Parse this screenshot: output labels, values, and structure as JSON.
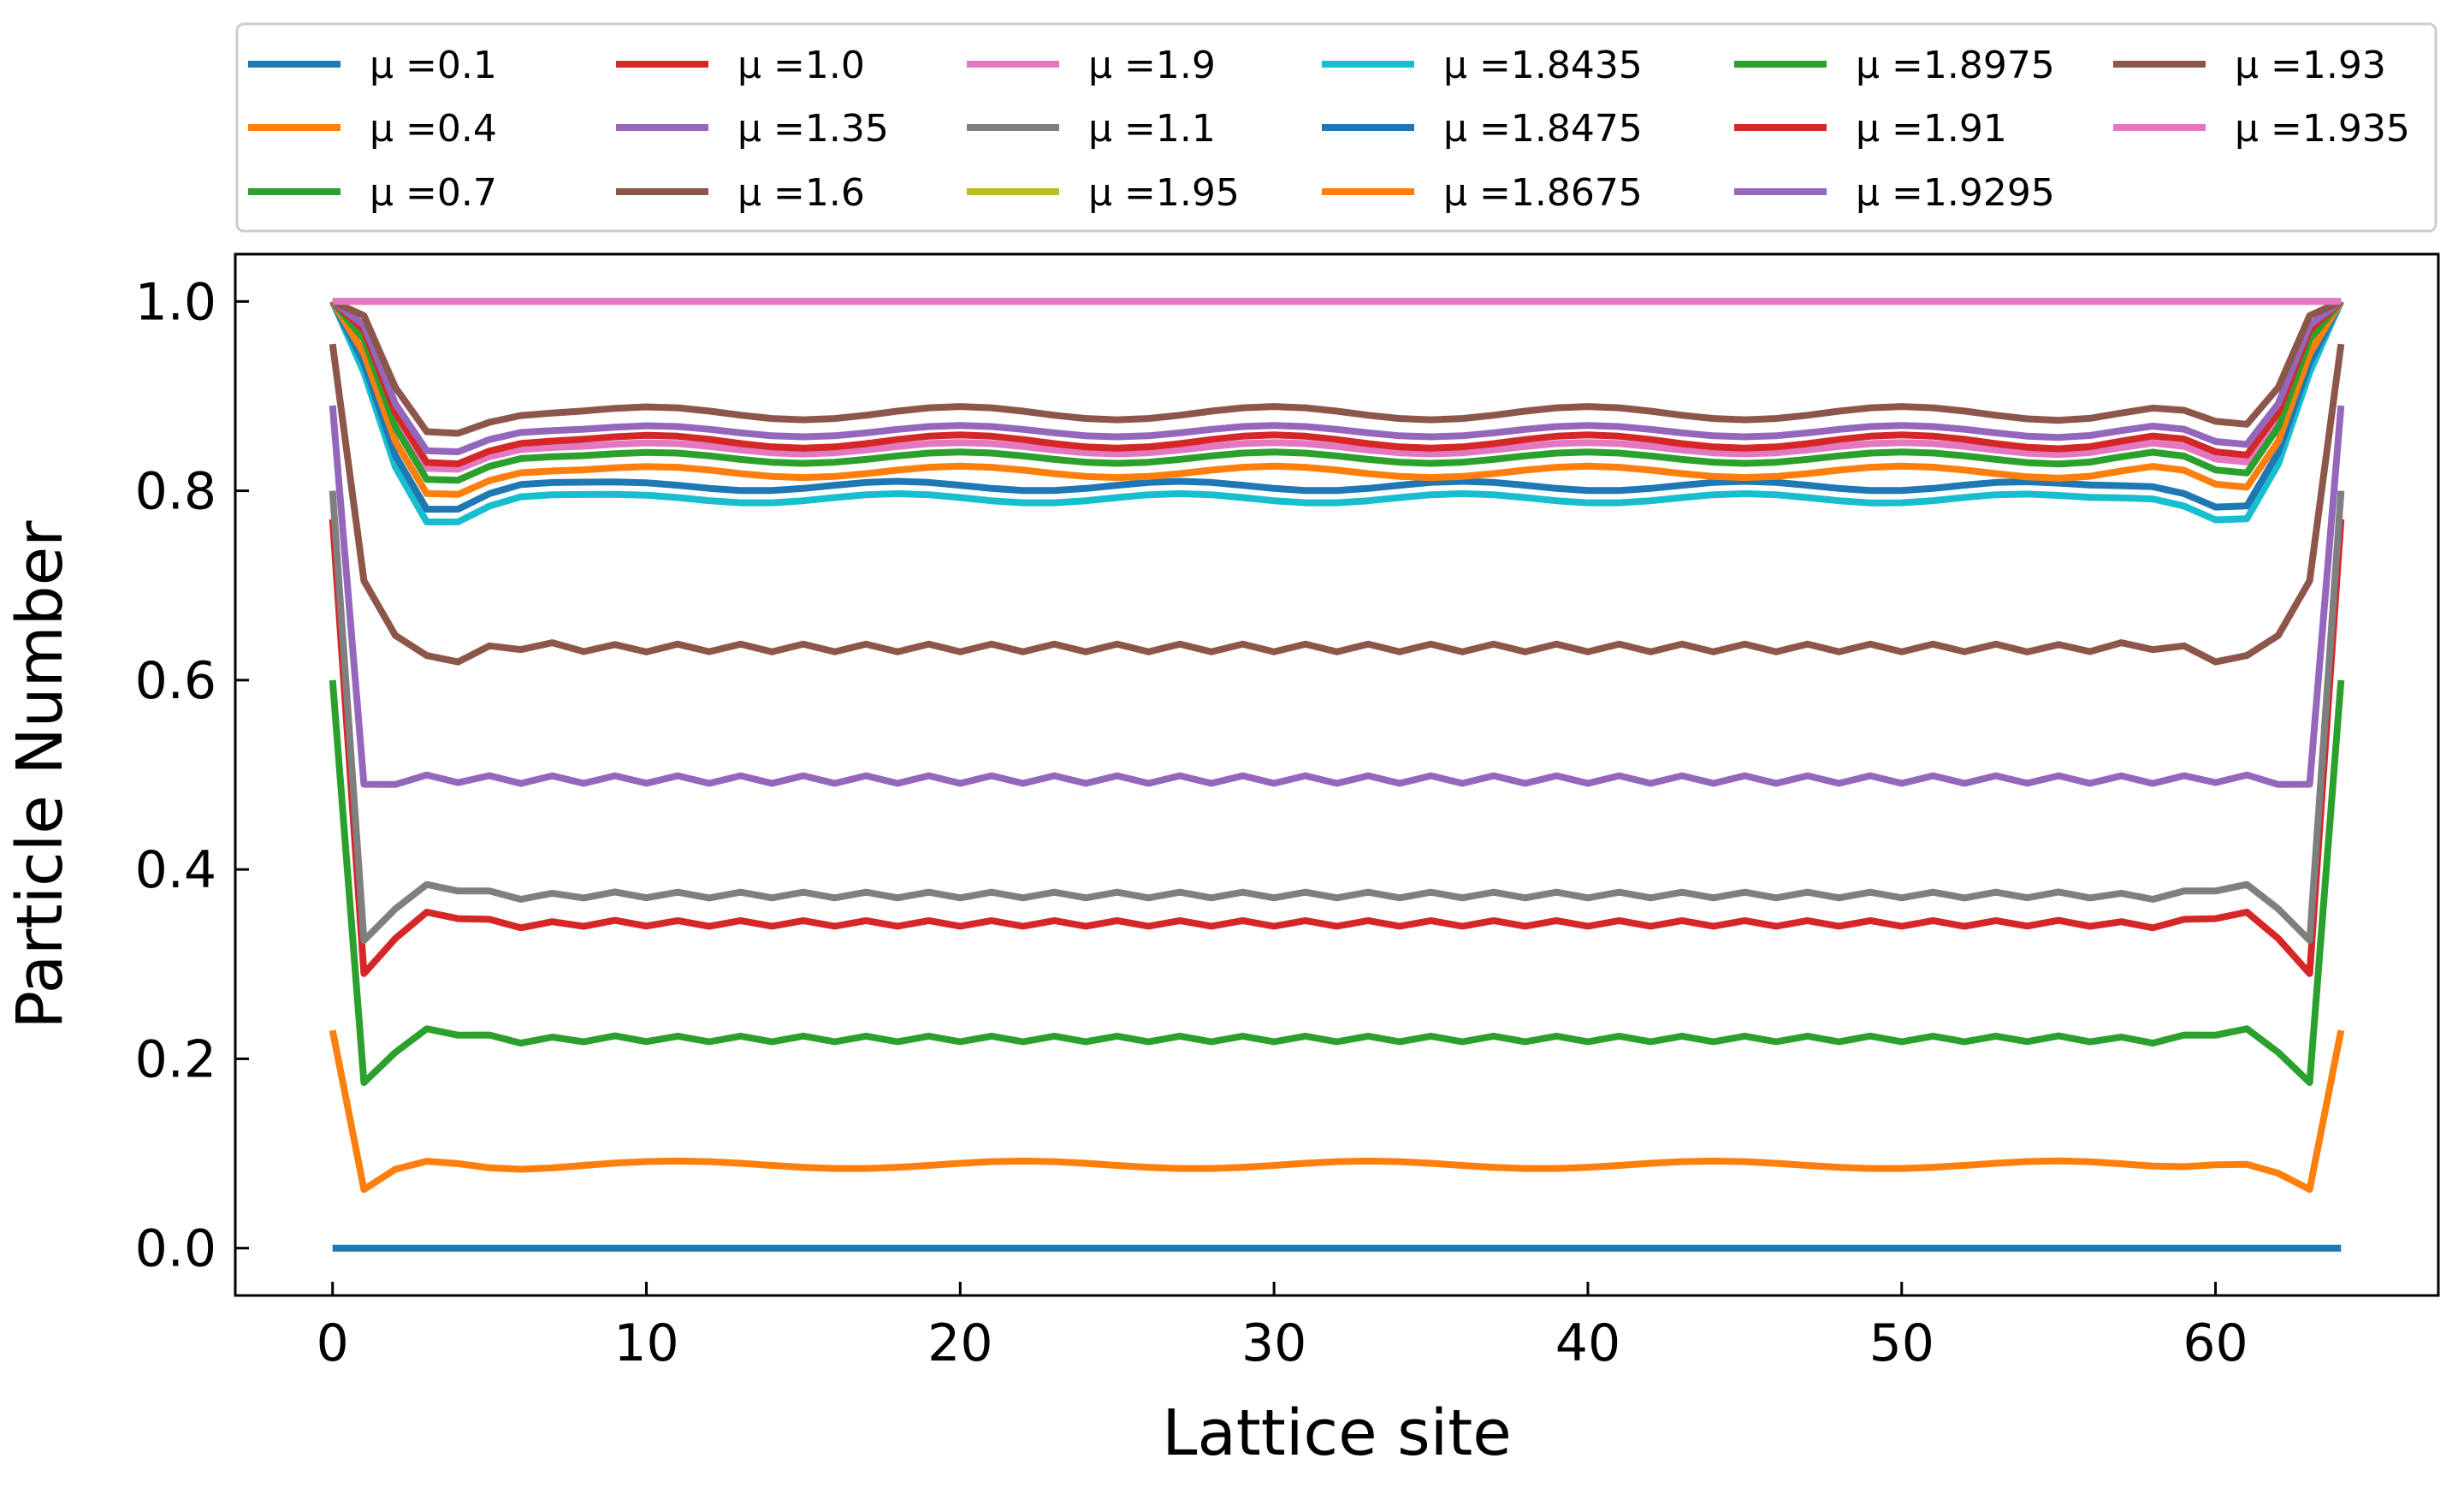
{
  "chart_data": {
    "type": "line",
    "title": "",
    "xlabel": "Lattice site",
    "ylabel": "Particle Number",
    "xlim": [
      -3.1,
      67.1
    ],
    "ylim": [
      -0.05,
      1.05
    ],
    "xticks": [
      0,
      10,
      20,
      30,
      40,
      50,
      60
    ],
    "yticks": [
      0.0,
      0.2,
      0.4,
      0.6,
      0.8,
      1.0
    ],
    "xtick_labels": [
      "0",
      "10",
      "20",
      "30",
      "40",
      "50",
      "60"
    ],
    "ytick_labels": [
      "0.0",
      "0.2",
      "0.4",
      "0.6",
      "0.8",
      "1.0"
    ],
    "grid": false,
    "legend_position": "top, above plot",
    "legend_columns": 6,
    "x_range": [
      0,
      64
    ],
    "series": [
      {
        "name": "μ =0.1",
        "color": "#1f77b4",
        "kind": "flat",
        "bulk": 0.0
      },
      {
        "name": "μ =0.4",
        "color": "#ff7f0e",
        "kind": "profile",
        "edge": 0.23,
        "dip": 0.062,
        "bulk": 0.088,
        "osc_amp": 0.004,
        "osc_period": 11,
        "zig_amp": 0.0
      },
      {
        "name": "μ =0.7",
        "color": "#2ca02c",
        "kind": "profile",
        "edge": 0.6,
        "dip": 0.175,
        "bulk": 0.221,
        "osc_amp": 0.0,
        "osc_period": 10,
        "zig_amp": 0.003
      },
      {
        "name": "μ =1.0",
        "color": "#d62728",
        "kind": "profile",
        "edge": 0.77,
        "dip": 0.29,
        "bulk": 0.343,
        "osc_amp": 0.0,
        "osc_period": 10,
        "zig_amp": 0.003
      },
      {
        "name": "μ =1.35",
        "color": "#9467bd",
        "kind": "profile",
        "edge": 0.89,
        "dip": 0.49,
        "bulk": 0.495,
        "osc_amp": 0.0,
        "osc_period": 10,
        "zig_amp": 0.004
      },
      {
        "name": "μ =1.6",
        "color": "#8c564b",
        "kind": "profile",
        "edge": 0.955,
        "dip": 0.705,
        "bulk": 0.634,
        "osc_amp": 0.0,
        "osc_period": 10,
        "zig_amp": 0.004
      },
      {
        "name": "μ =1.9",
        "color": "#e377c2",
        "kind": "profile",
        "edge": 1.0,
        "dip": 0.96,
        "bulk": 0.845,
        "osc_amp": 0.006,
        "osc_period": 10,
        "zig_amp": 0.0
      },
      {
        "name": "μ =1.1",
        "color": "#7f7f7f",
        "kind": "profile",
        "edge": 0.8,
        "dip": 0.325,
        "bulk": 0.373,
        "osc_amp": 0.0,
        "osc_period": 10,
        "zig_amp": 0.003
      },
      {
        "name": "μ =1.95",
        "color": "#bcbd22",
        "kind": "flat",
        "bulk": 1.0
      },
      {
        "name": "μ =1.8435",
        "color": "#17becf",
        "kind": "profile",
        "edge": 1.0,
        "dip": 0.925,
        "bulk": 0.792,
        "osc_amp": 0.005,
        "osc_period": 9,
        "zig_amp": 0.0
      },
      {
        "name": "μ =1.8475",
        "color": "#1f77b4",
        "kind": "profile",
        "edge": 1.0,
        "dip": 0.935,
        "bulk": 0.805,
        "osc_amp": 0.005,
        "osc_period": 9,
        "zig_amp": 0.0
      },
      {
        "name": "μ =1.8675",
        "color": "#ff7f0e",
        "kind": "profile",
        "edge": 1.0,
        "dip": 0.945,
        "bulk": 0.82,
        "osc_amp": 0.006,
        "osc_period": 10,
        "zig_amp": 0.0
      },
      {
        "name": "μ =1.8975",
        "color": "#2ca02c",
        "kind": "profile",
        "edge": 1.0,
        "dip": 0.96,
        "bulk": 0.835,
        "osc_amp": 0.006,
        "osc_period": 10,
        "zig_amp": 0.0
      },
      {
        "name": "μ =1.91",
        "color": "#d62728",
        "kind": "profile",
        "edge": 1.0,
        "dip": 0.97,
        "bulk": 0.852,
        "osc_amp": 0.007,
        "osc_period": 10,
        "zig_amp": 0.0
      },
      {
        "name": "μ =1.9295",
        "color": "#9467bd",
        "kind": "profile",
        "edge": 1.0,
        "dip": 0.975,
        "bulk": 0.863,
        "osc_amp": 0.006,
        "osc_period": 10,
        "zig_amp": 0.0
      },
      {
        "name": "μ =1.93",
        "color": "#8c564b",
        "kind": "profile",
        "edge": 1.0,
        "dip": 0.985,
        "bulk": 0.882,
        "osc_amp": 0.007,
        "osc_period": 10,
        "zig_amp": 0.0
      },
      {
        "name": "μ =1.935",
        "color": "#e377c2",
        "kind": "flat",
        "bulk": 1.0
      }
    ]
  }
}
